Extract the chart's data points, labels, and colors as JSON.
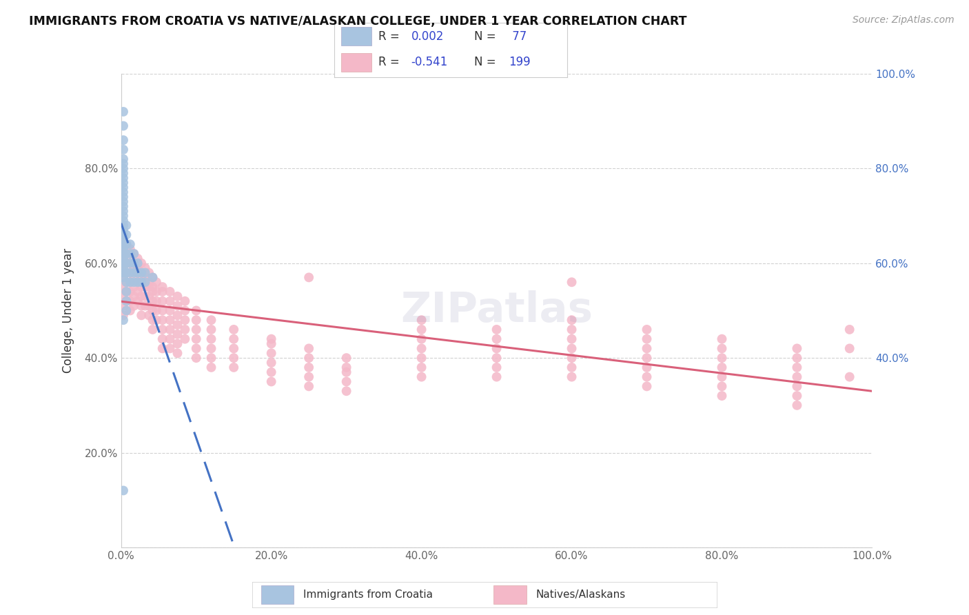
{
  "title": "IMMIGRANTS FROM CROATIA VS NATIVE/ALASKAN COLLEGE, UNDER 1 YEAR CORRELATION CHART",
  "source": "Source: ZipAtlas.com",
  "ylabel": "College, Under 1 year",
  "blue_color": "#a8c4e0",
  "blue_line_color": "#4472c4",
  "pink_color": "#f4b8c8",
  "pink_line_color": "#d9607a",
  "legend_text_color": "#3344cc",
  "watermark": "ZIPatlas",
  "croatia_scatter_x": [
    0.003,
    0.003,
    0.003,
    0.003,
    0.003,
    0.003,
    0.003,
    0.003,
    0.003,
    0.003,
    0.003,
    0.003,
    0.003,
    0.003,
    0.003,
    0.003,
    0.003,
    0.003,
    0.003,
    0.003,
    0.003,
    0.003,
    0.003,
    0.003,
    0.003,
    0.003,
    0.003,
    0.003,
    0.003,
    0.003,
    0.007,
    0.007,
    0.007,
    0.007,
    0.007,
    0.007,
    0.007,
    0.007,
    0.007,
    0.007,
    0.012,
    0.012,
    0.012,
    0.012,
    0.012,
    0.017,
    0.017,
    0.017,
    0.017,
    0.022,
    0.022,
    0.022,
    0.027,
    0.027,
    0.032,
    0.032,
    0.042,
    0.003,
    0.003
  ],
  "croatia_scatter_y": [
    0.92,
    0.89,
    0.86,
    0.84,
    0.82,
    0.81,
    0.8,
    0.79,
    0.78,
    0.77,
    0.76,
    0.75,
    0.74,
    0.73,
    0.72,
    0.71,
    0.7,
    0.69,
    0.68,
    0.67,
    0.66,
    0.65,
    0.64,
    0.63,
    0.62,
    0.61,
    0.6,
    0.59,
    0.58,
    0.57,
    0.68,
    0.66,
    0.64,
    0.62,
    0.6,
    0.58,
    0.56,
    0.54,
    0.52,
    0.5,
    0.64,
    0.62,
    0.6,
    0.58,
    0.56,
    0.62,
    0.6,
    0.58,
    0.56,
    0.6,
    0.58,
    0.56,
    0.58,
    0.56,
    0.58,
    0.56,
    0.57,
    0.48,
    0.12
  ],
  "native_scatter_x": [
    0.003,
    0.003,
    0.003,
    0.003,
    0.003,
    0.003,
    0.003,
    0.003,
    0.003,
    0.007,
    0.007,
    0.007,
    0.007,
    0.007,
    0.007,
    0.007,
    0.012,
    0.012,
    0.012,
    0.012,
    0.012,
    0.012,
    0.012,
    0.012,
    0.017,
    0.017,
    0.017,
    0.017,
    0.017,
    0.017,
    0.017,
    0.022,
    0.022,
    0.022,
    0.022,
    0.022,
    0.022,
    0.027,
    0.027,
    0.027,
    0.027,
    0.027,
    0.027,
    0.027,
    0.032,
    0.032,
    0.032,
    0.032,
    0.032,
    0.037,
    0.037,
    0.037,
    0.037,
    0.037,
    0.037,
    0.042,
    0.042,
    0.042,
    0.042,
    0.042,
    0.042,
    0.042,
    0.047,
    0.047,
    0.047,
    0.047,
    0.047,
    0.055,
    0.055,
    0.055,
    0.055,
    0.055,
    0.055,
    0.055,
    0.055,
    0.065,
    0.065,
    0.065,
    0.065,
    0.065,
    0.065,
    0.065,
    0.075,
    0.075,
    0.075,
    0.075,
    0.075,
    0.075,
    0.075,
    0.085,
    0.085,
    0.085,
    0.085,
    0.085,
    0.1,
    0.1,
    0.1,
    0.1,
    0.1,
    0.1,
    0.12,
    0.12,
    0.12,
    0.12,
    0.12,
    0.12,
    0.15,
    0.15,
    0.15,
    0.15,
    0.15,
    0.2,
    0.2,
    0.2,
    0.2,
    0.2,
    0.2,
    0.25,
    0.25,
    0.25,
    0.25,
    0.25,
    0.25,
    0.3,
    0.3,
    0.3,
    0.3,
    0.3,
    0.4,
    0.4,
    0.4,
    0.4,
    0.4,
    0.4,
    0.4,
    0.5,
    0.5,
    0.5,
    0.5,
    0.5,
    0.5,
    0.6,
    0.6,
    0.6,
    0.6,
    0.6,
    0.6,
    0.6,
    0.6,
    0.7,
    0.7,
    0.7,
    0.7,
    0.7,
    0.7,
    0.7,
    0.8,
    0.8,
    0.8,
    0.8,
    0.8,
    0.8,
    0.8,
    0.9,
    0.9,
    0.9,
    0.9,
    0.9,
    0.9,
    0.9,
    0.97,
    0.97,
    0.97
  ],
  "native_scatter_y": [
    0.65,
    0.63,
    0.61,
    0.59,
    0.57,
    0.55,
    0.53,
    0.51,
    0.49,
    0.64,
    0.62,
    0.6,
    0.58,
    0.56,
    0.54,
    0.52,
    0.63,
    0.62,
    0.6,
    0.58,
    0.56,
    0.54,
    0.52,
    0.5,
    0.62,
    0.6,
    0.59,
    0.57,
    0.55,
    0.53,
    0.51,
    0.61,
    0.59,
    0.58,
    0.56,
    0.54,
    0.52,
    0.6,
    0.58,
    0.57,
    0.55,
    0.53,
    0.51,
    0.49,
    0.59,
    0.57,
    0.55,
    0.53,
    0.51,
    0.58,
    0.56,
    0.55,
    0.53,
    0.51,
    0.49,
    0.57,
    0.55,
    0.54,
    0.52,
    0.5,
    0.48,
    0.46,
    0.56,
    0.54,
    0.52,
    0.5,
    0.48,
    0.55,
    0.54,
    0.52,
    0.5,
    0.48,
    0.46,
    0.44,
    0.42,
    0.54,
    0.52,
    0.5,
    0.48,
    0.46,
    0.44,
    0.42,
    0.53,
    0.51,
    0.49,
    0.47,
    0.45,
    0.43,
    0.41,
    0.52,
    0.5,
    0.48,
    0.46,
    0.44,
    0.5,
    0.48,
    0.46,
    0.44,
    0.42,
    0.4,
    0.48,
    0.46,
    0.44,
    0.42,
    0.4,
    0.38,
    0.46,
    0.44,
    0.42,
    0.4,
    0.38,
    0.44,
    0.43,
    0.41,
    0.39,
    0.37,
    0.35,
    0.57,
    0.42,
    0.4,
    0.38,
    0.36,
    0.34,
    0.4,
    0.38,
    0.37,
    0.35,
    0.33,
    0.48,
    0.46,
    0.44,
    0.42,
    0.4,
    0.38,
    0.36,
    0.46,
    0.44,
    0.42,
    0.4,
    0.38,
    0.36,
    0.56,
    0.48,
    0.46,
    0.44,
    0.42,
    0.4,
    0.38,
    0.36,
    0.46,
    0.44,
    0.42,
    0.4,
    0.38,
    0.36,
    0.34,
    0.44,
    0.42,
    0.4,
    0.38,
    0.36,
    0.34,
    0.32,
    0.42,
    0.4,
    0.38,
    0.36,
    0.34,
    0.32,
    0.3,
    0.46,
    0.42,
    0.36
  ]
}
